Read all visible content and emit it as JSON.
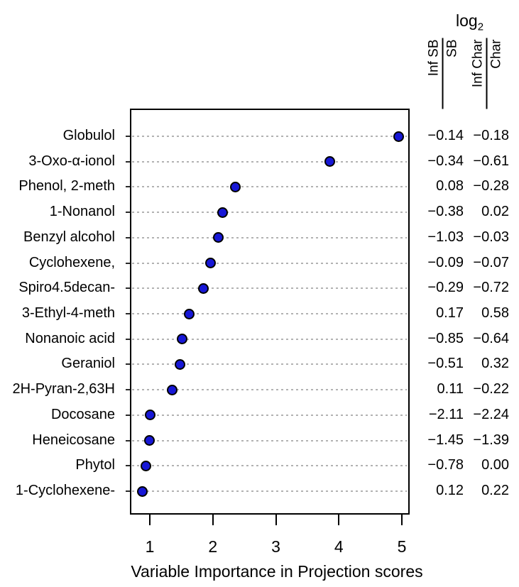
{
  "header": {
    "log2_text": "log",
    "log2_sub": "2",
    "col1": {
      "numerator": "Inf SB",
      "denominator": "SB"
    },
    "col2": {
      "numerator": "Inf Char",
      "denominator": "Char"
    }
  },
  "chart_data": {
    "type": "scatter",
    "subtype": "cleveland-dot-plot",
    "title": "",
    "xlabel": "Variable Importance in Projection scores",
    "ylabel": "",
    "xlim": [
      0.68,
      5.12
    ],
    "xticks": [
      1,
      2,
      3,
      4,
      5
    ],
    "grid": "dashed horizontal lines per category",
    "point_color": "#1717d6",
    "point_border": "#000000",
    "grid_color": "#b2b2b2",
    "value_columns": [
      "log2 Inf SB / SB",
      "log2 Inf Char / Char"
    ],
    "rows": [
      {
        "label": "Globulol",
        "vip": 4.95,
        "log_inf_sb_sb": "−0.14",
        "log_inf_char_char": "−0.18"
      },
      {
        "label": "3-Oxo-α-ionol",
        "vip": 3.86,
        "log_inf_sb_sb": "−0.34",
        "log_inf_char_char": "−0.61"
      },
      {
        "label": "Phenol, 2-meth",
        "vip": 2.36,
        "log_inf_sb_sb": "0.08",
        "log_inf_char_char": "−0.28"
      },
      {
        "label": "1-Nonanol",
        "vip": 2.15,
        "log_inf_sb_sb": "−0.38",
        "log_inf_char_char": "0.02"
      },
      {
        "label": "Benzyl alcohol",
        "vip": 2.09,
        "log_inf_sb_sb": "−1.03",
        "log_inf_char_char": "−0.03"
      },
      {
        "label": "Cyclohexene,",
        "vip": 1.96,
        "log_inf_sb_sb": "−0.09",
        "log_inf_char_char": "−0.07"
      },
      {
        "label": "Spiro4.5decan-",
        "vip": 1.85,
        "log_inf_sb_sb": "−0.29",
        "log_inf_char_char": "−0.72"
      },
      {
        "label": "3-Ethyl-4-meth",
        "vip": 1.62,
        "log_inf_sb_sb": "0.17",
        "log_inf_char_char": "0.58"
      },
      {
        "label": "Nonanoic acid",
        "vip": 1.51,
        "log_inf_sb_sb": "−0.85",
        "log_inf_char_char": "−0.64"
      },
      {
        "label": "Geraniol",
        "vip": 1.48,
        "log_inf_sb_sb": "−0.51",
        "log_inf_char_char": "0.32"
      },
      {
        "label": "2H-Pyran-2,63H",
        "vip": 1.36,
        "log_inf_sb_sb": "0.11",
        "log_inf_char_char": "−0.22"
      },
      {
        "label": "Docosane",
        "vip": 1.0,
        "log_inf_sb_sb": "−2.11",
        "log_inf_char_char": "−2.24"
      },
      {
        "label": "Heneicosane",
        "vip": 0.99,
        "log_inf_sb_sb": "−1.45",
        "log_inf_char_char": "−1.39"
      },
      {
        "label": "Phytol",
        "vip": 0.94,
        "log_inf_sb_sb": "−0.78",
        "log_inf_char_char": "0.00"
      },
      {
        "label": "1-Cyclohexene-",
        "vip": 0.88,
        "log_inf_sb_sb": "0.12",
        "log_inf_char_char": "0.22"
      }
    ]
  }
}
